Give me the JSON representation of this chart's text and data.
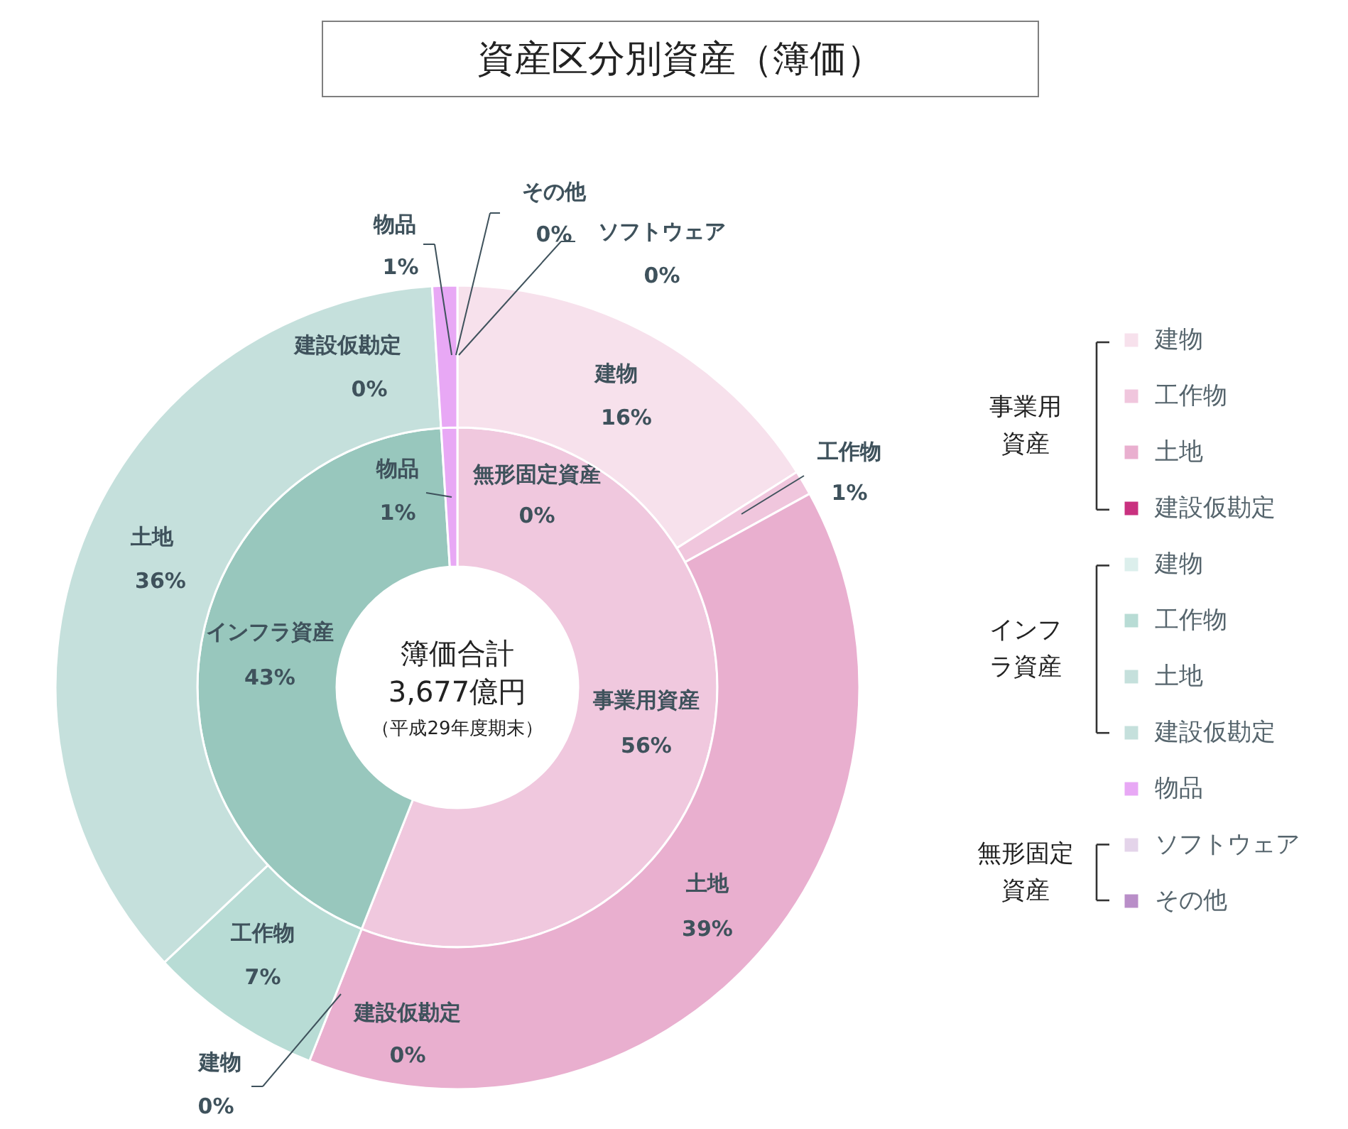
{
  "chart_data": [
    {
      "type": "donut",
      "title": "資産区分別資産（簿価）",
      "categories": [
        "事業用資産",
        "インフラ資産",
        "物品",
        "無形固定資産"
      ],
      "values": [
        56,
        43,
        1,
        0
      ],
      "colors": [
        "#f0c8de",
        "#98c7bd",
        "#e8a8f5",
        "#f0c8de"
      ],
      "value_labels": [
        "56%",
        "43%",
        "1%",
        "0%"
      ],
      "annotations": [
        "簿価合計",
        "3,677億円",
        "（平成29年度期末）"
      ]
    },
    {
      "type": "donut",
      "categories": [
        "建物",
        "工作物",
        "土地",
        "建設仮勘定",
        "建物",
        "工作物",
        "土地",
        "建設仮勘定",
        "物品",
        "ソフトウェア",
        "その他"
      ],
      "values": [
        16,
        1,
        39,
        0,
        0,
        7,
        36,
        0,
        1,
        0,
        0
      ],
      "colors": [
        "#f7e1ec",
        "#f0c6dd",
        "#e9afcf",
        "#c9317f",
        "#dcefec",
        "#b8dcd5",
        "#c5e0dc",
        "#c5e0dc",
        "#e8a8f5",
        "#e4d4ea",
        "#b98ec8"
      ],
      "value_labels": [
        "16%",
        "1%",
        "39%",
        "0%",
        "0%",
        "7%",
        "36%",
        "0%",
        "1%",
        "0%",
        "0%"
      ],
      "legend": "right"
    }
  ]
}
